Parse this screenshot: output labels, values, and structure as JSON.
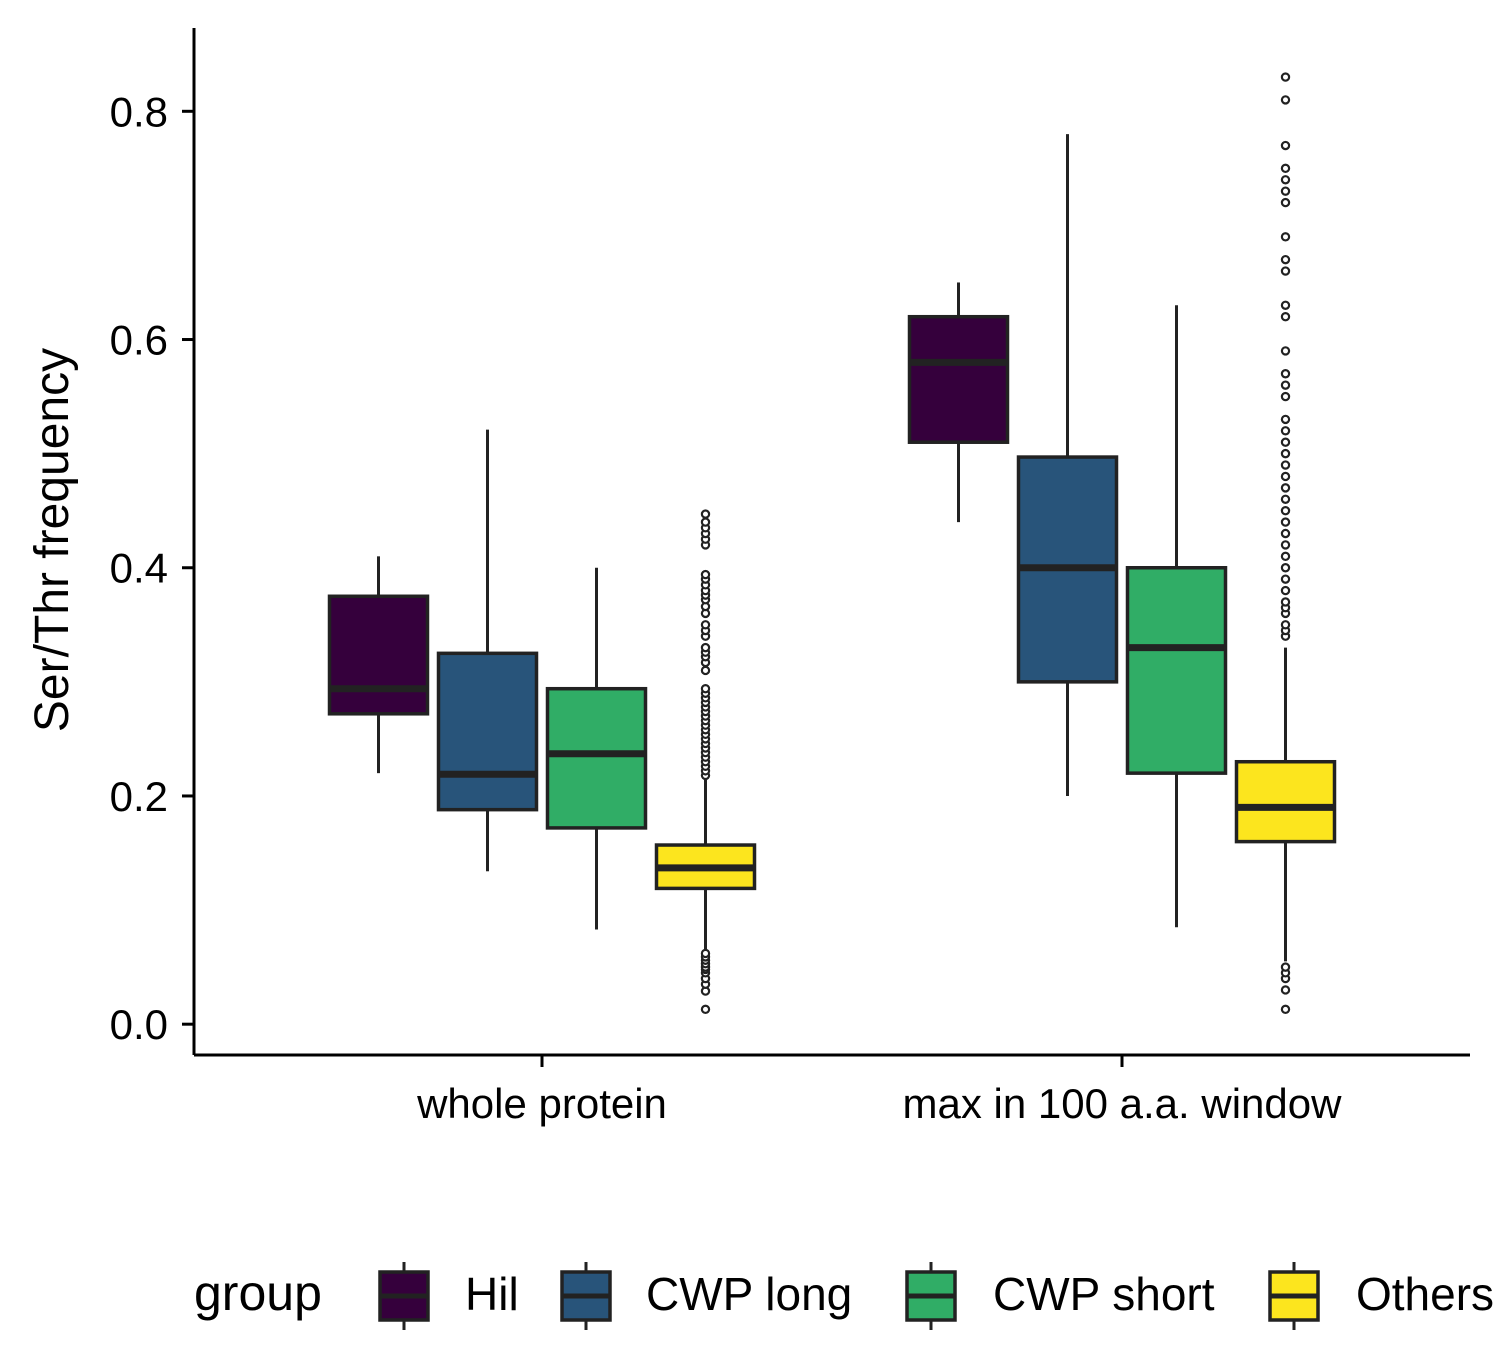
{
  "chart_data": {
    "type": "boxplot",
    "title": "",
    "xlabel": "",
    "ylabel": "Ser/Thr frequency",
    "ylim": [
      -0.027,
      0.873
    ],
    "yticks": [
      "0.0",
      "0.2",
      "0.4",
      "0.6",
      "0.8"
    ],
    "ytick_values": [
      0.0,
      0.2,
      0.4,
      0.6,
      0.8
    ],
    "categories": [
      "whole protein",
      "max in 100 a.a. window"
    ],
    "grid": false,
    "legend": {
      "title": "group",
      "position": "bottom",
      "items": [
        "Hil",
        "CWP long",
        "CWP short",
        "Others"
      ]
    },
    "colors": {
      "Hil": "#35003c",
      "CWP long": "#28547a",
      "CWP short": "#30ad66",
      "Others": "#fce51e",
      "outline": "#222222"
    },
    "series": [
      {
        "name": "Hil",
        "boxes": [
          {
            "category": "whole protein",
            "whisker_low": 0.22,
            "q1": 0.272,
            "median": 0.294,
            "q3": 0.375,
            "whisker_high": 0.41,
            "outliers": []
          },
          {
            "category": "max in 100 a.a. window",
            "whisker_low": 0.44,
            "q1": 0.51,
            "median": 0.58,
            "q3": 0.62,
            "whisker_high": 0.65,
            "outliers": []
          }
        ]
      },
      {
        "name": "CWP long",
        "boxes": [
          {
            "category": "whole protein",
            "whisker_low": 0.134,
            "q1": 0.188,
            "median": 0.219,
            "q3": 0.325,
            "whisker_high": 0.521,
            "outliers": []
          },
          {
            "category": "max in 100 a.a. window",
            "whisker_low": 0.2,
            "q1": 0.3,
            "median": 0.4,
            "q3": 0.497,
            "whisker_high": 0.78,
            "outliers": []
          }
        ]
      },
      {
        "name": "CWP short",
        "boxes": [
          {
            "category": "whole protein",
            "whisker_low": 0.083,
            "q1": 0.172,
            "median": 0.237,
            "q3": 0.294,
            "whisker_high": 0.4,
            "outliers": []
          },
          {
            "category": "max in 100 a.a. window",
            "whisker_low": 0.085,
            "q1": 0.22,
            "median": 0.33,
            "q3": 0.4,
            "whisker_high": 0.63,
            "outliers": []
          }
        ]
      },
      {
        "name": "Others",
        "boxes": [
          {
            "category": "whole protein",
            "whisker_low": 0.065,
            "q1": 0.119,
            "median": 0.137,
            "q3": 0.157,
            "whisker_high": 0.215,
            "outliers": [
              0.013,
              0.029,
              0.035,
              0.04,
              0.045,
              0.048,
              0.05,
              0.053,
              0.056,
              0.059,
              0.062,
              0.218,
              0.222,
              0.226,
              0.23,
              0.234,
              0.238,
              0.242,
              0.246,
              0.25,
              0.254,
              0.258,
              0.262,
              0.266,
              0.27,
              0.274,
              0.278,
              0.282,
              0.286,
              0.29,
              0.294,
              0.31,
              0.317,
              0.322,
              0.326,
              0.33,
              0.34,
              0.345,
              0.35,
              0.36,
              0.366,
              0.372,
              0.376,
              0.38,
              0.385,
              0.39,
              0.394,
              0.42,
              0.425,
              0.43,
              0.435,
              0.44,
              0.447
            ]
          },
          {
            "category": "max in 100 a.a. window",
            "whisker_low": 0.055,
            "q1": 0.16,
            "median": 0.19,
            "q3": 0.23,
            "whisker_high": 0.33,
            "outliers": [
              0.013,
              0.03,
              0.04,
              0.045,
              0.05,
              0.34,
              0.345,
              0.35,
              0.36,
              0.365,
              0.37,
              0.38,
              0.39,
              0.4,
              0.41,
              0.42,
              0.43,
              0.44,
              0.45,
              0.46,
              0.47,
              0.48,
              0.49,
              0.5,
              0.51,
              0.52,
              0.53,
              0.55,
              0.56,
              0.57,
              0.59,
              0.62,
              0.63,
              0.66,
              0.67,
              0.69,
              0.72,
              0.73,
              0.74,
              0.75,
              0.77,
              0.81,
              0.83
            ]
          }
        ]
      }
    ]
  }
}
